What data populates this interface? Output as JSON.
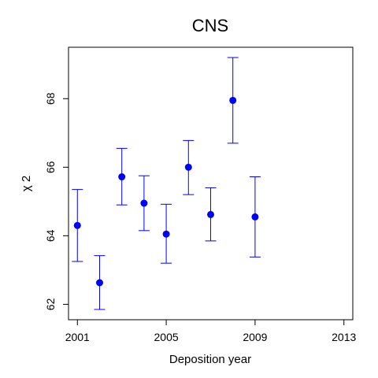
{
  "chart_data": {
    "type": "scatter",
    "title": "CNS",
    "xlabel": "Deposition year",
    "ylabel": "χ 2",
    "xlim": [
      2000.6,
      2013.4
    ],
    "ylim": [
      61.55,
      69.5
    ],
    "x_ticks": [
      2001,
      2005,
      2009,
      2013
    ],
    "y_ticks": [
      62,
      64,
      66,
      68
    ],
    "grid": false,
    "legend": "none",
    "point_color": "#0000ff",
    "series": [
      {
        "x": [
          2001,
          2002,
          2003,
          2004,
          2005,
          2006,
          2007,
          2008,
          2009
        ],
        "y": [
          64.3,
          62.63,
          65.72,
          64.95,
          64.05,
          66.0,
          64.62,
          67.95,
          64.55
        ],
        "lower": [
          63.25,
          61.85,
          64.9,
          64.15,
          63.2,
          65.2,
          63.85,
          66.7,
          63.38
        ],
        "upper": [
          65.35,
          63.42,
          66.55,
          65.75,
          64.92,
          66.78,
          65.4,
          69.2,
          65.72
        ]
      }
    ]
  }
}
